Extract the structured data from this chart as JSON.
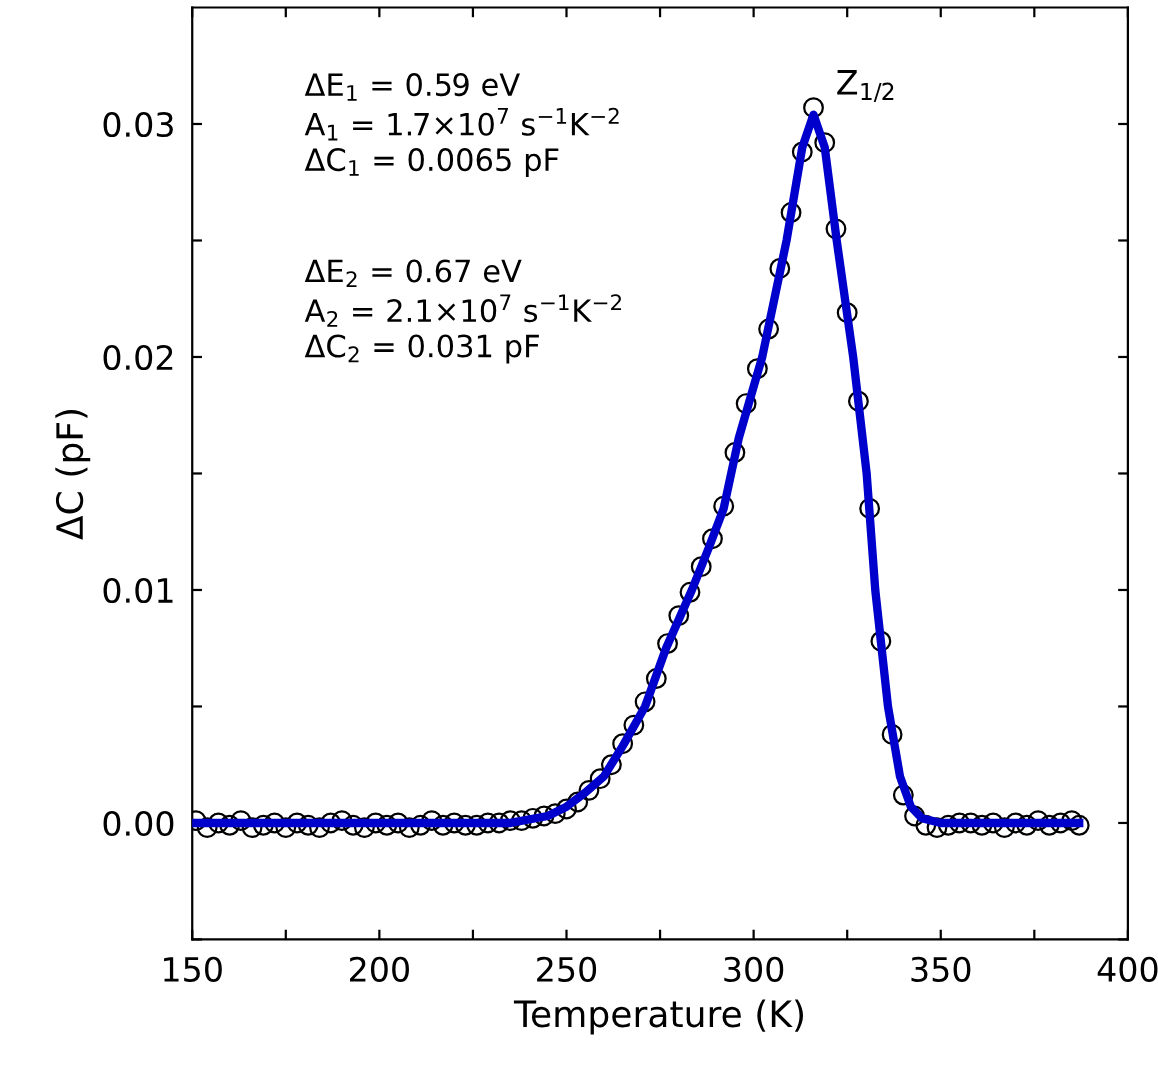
{
  "chart_data": {
    "type": "scatter",
    "xlabel": "Temperature (K)",
    "ylabel": "ΔC (pF)",
    "xlim": [
      150,
      400
    ],
    "ylim": [
      -0.005,
      0.035
    ],
    "xticks": [
      150,
      {
        "value": 175,
        "label": null
      },
      200,
      {
        "value": 225,
        "label": null
      },
      250,
      {
        "value": 275,
        "label": null
      },
      300,
      {
        "value": 325,
        "label": null
      },
      350,
      {
        "value": 375,
        "label": null
      },
      400
    ],
    "yticks": [
      {
        "value": -0.005,
        "label": null
      },
      {
        "value": 0,
        "label": "0.00"
      },
      {
        "value": 0.005,
        "label": null
      },
      {
        "value": 0.01,
        "label": "0.01"
      },
      {
        "value": 0.015,
        "label": null
      },
      {
        "value": 0.02,
        "label": "0.02"
      },
      {
        "value": 0.025,
        "label": null
      },
      {
        "value": 0.03,
        "label": "0.03"
      }
    ],
    "grid": false,
    "legend": false,
    "annotations": [
      "ΔE$_{1}$ = 0.59 eV\nA$_{1}$ = 1.7×10$^{7}$ s$^{−1}$K$^{−2}$\nΔC$_{1}$ = 0.0065 pF",
      "ΔE$_{2}$ = 0.67 eV\nA$_{2}$ = 2.1×10$^{7}$ s$^{−1}$K$^{−2}$\nΔC$_{2}$ = 0.031 pF",
      {
        "text": "Z$_{1/2}$",
        "x": 316,
        "y": 0.0307
      }
    ],
    "series": [
      {
        "marker": "circle",
        "color": "#000000",
        "x": [
          151,
          154,
          157,
          160,
          163,
          166,
          169,
          172,
          175,
          178,
          181,
          184,
          187,
          190,
          193,
          196,
          199,
          202,
          205,
          208,
          211,
          214,
          217,
          220,
          223,
          226,
          229,
          232,
          235,
          238,
          241,
          244,
          247,
          250,
          253,
          256,
          259,
          262,
          265,
          268,
          271,
          274,
          277,
          280,
          283,
          286,
          289,
          292,
          295,
          298,
          301,
          304,
          307,
          310,
          313,
          316,
          319,
          322,
          325,
          328,
          331,
          334,
          337,
          340,
          343,
          346,
          349,
          352,
          355,
          358,
          361,
          364,
          367,
          370,
          373,
          376,
          379,
          382,
          385,
          387
        ],
        "values": [
          0.0001,
          -0.0002,
          0.0,
          -0.0001,
          0.0001,
          -0.0002,
          -0.0001,
          0.0,
          -0.0002,
          0.0,
          -0.0001,
          -0.0002,
          0.0,
          0.0001,
          -0.0001,
          -0.0002,
          0.0,
          -0.0001,
          0.0,
          -0.0002,
          -0.0001,
          0.0001,
          -0.0001,
          0.0,
          -0.0001,
          -0.0001,
          0.0,
          0.0,
          0.0001,
          0.0001,
          0.0002,
          0.0003,
          0.0004,
          0.0006,
          0.0009,
          0.0014,
          0.0019,
          0.0025,
          0.0034,
          0.0042,
          0.0052,
          0.0062,
          0.0077,
          0.0089,
          0.0099,
          0.011,
          0.0122,
          0.0136,
          0.0159,
          0.018,
          0.0195,
          0.0212,
          0.0238,
          0.0262,
          0.0288,
          0.0307,
          0.0292,
          0.0255,
          0.0219,
          0.0181,
          0.0135,
          0.0078,
          0.0038,
          0.0012,
          0.0003,
          -0.0001,
          -0.0002,
          -0.0001,
          0.0,
          0.0,
          -0.0001,
          0.0,
          -0.0002,
          0.0,
          -0.0001,
          0.0001,
          -0.0001,
          0.0,
          0.0001,
          -0.0001
        ]
      },
      {
        "type": "line",
        "marker": "none",
        "line_style": "solid",
        "color": "#0000cc",
        "x": [
          150,
          200,
          235,
          245,
          250,
          255,
          260,
          265,
          271,
          276.6,
          283.5,
          288,
          292,
          296,
          302.3,
          308.8,
          313,
          316,
          319,
          322.2,
          326.6,
          330.2,
          332.5,
          335.9,
          339.1,
          342,
          345,
          350,
          387
        ],
        "values": [
          0,
          0,
          0,
          0.0003,
          0.0007,
          0.0013,
          0.002,
          0.0033,
          0.005,
          0.0075,
          0.01,
          0.0118,
          0.0135,
          0.0165,
          0.02,
          0.025,
          0.029,
          0.0304,
          0.029,
          0.025,
          0.02,
          0.015,
          0.01,
          0.005,
          0.002,
          0.0007,
          0.0002,
          0,
          0
        ]
      }
    ]
  }
}
